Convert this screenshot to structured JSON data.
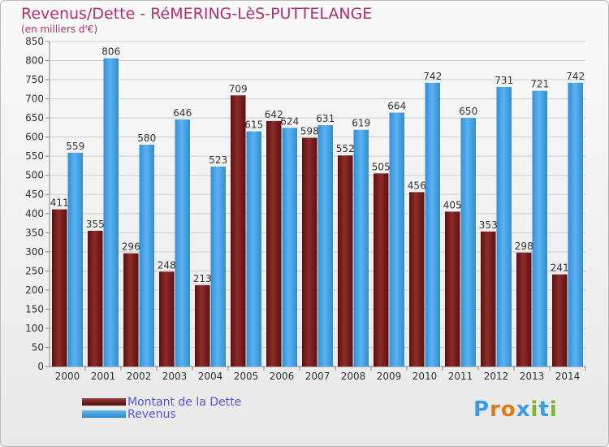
{
  "header": {
    "title": "Revenus/Dette - RéMERING-LèS-PUTTELANGE",
    "subtitle": "(en milliers d'€)"
  },
  "legend": {
    "debt_label": "Montant de la Dette",
    "revenue_label": "Revenus"
  },
  "logo": {
    "text": "Proxiti"
  },
  "colors": {
    "title": "#b0306c",
    "debt": "#7a1f1f",
    "revenue": "#3a9be0",
    "legend_text": "#5555dd"
  },
  "chart_data": {
    "type": "bar",
    "title": "Revenus/Dette - RéMERING-LèS-PUTTELANGE",
    "ylabel": "(en milliers d'€)",
    "ylim": [
      0,
      850
    ],
    "ytick_step": 50,
    "grid": true,
    "legend_position": "bottom-left",
    "categories": [
      "2000",
      "2001",
      "2002",
      "2003",
      "2004",
      "2005",
      "2006",
      "2007",
      "2008",
      "2009",
      "2010",
      "2011",
      "2012",
      "2013",
      "2014"
    ],
    "series": [
      {
        "name": "Montant de la Dette",
        "values": [
          411,
          355,
          296,
          248,
          213,
          709,
          642,
          598,
          552,
          505,
          456,
          405,
          353,
          298,
          241
        ]
      },
      {
        "name": "Revenus",
        "values": [
          559,
          806,
          580,
          646,
          523,
          615,
          624,
          631,
          619,
          664,
          742,
          650,
          731,
          721,
          742
        ]
      }
    ]
  }
}
